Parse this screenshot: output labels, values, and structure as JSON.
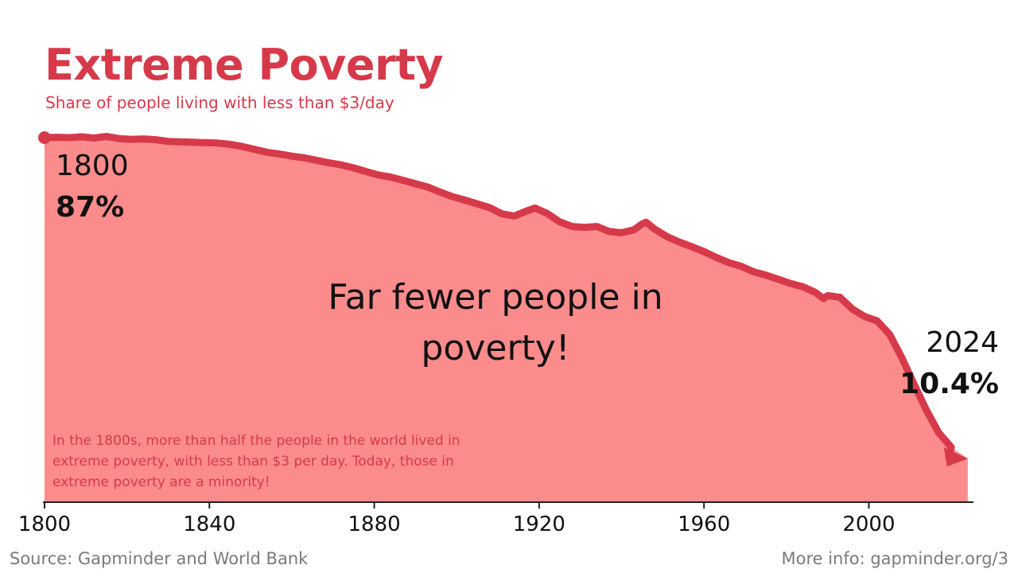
{
  "header": {
    "title": "Extreme Poverty",
    "subtitle": "Share of people living with less than $3/day"
  },
  "chart_data": {
    "type": "area",
    "x": [
      1800,
      1803,
      1806,
      1809,
      1812,
      1815,
      1818,
      1821,
      1824,
      1827,
      1830,
      1833,
      1836,
      1839,
      1842,
      1845,
      1848,
      1851,
      1854,
      1857,
      1860,
      1863,
      1866,
      1869,
      1872,
      1875,
      1878,
      1881,
      1884,
      1887,
      1890,
      1893,
      1896,
      1899,
      1902,
      1905,
      1908,
      1911,
      1914,
      1917,
      1919,
      1922,
      1925,
      1928,
      1931,
      1934,
      1937,
      1940,
      1943,
      1945,
      1946,
      1948,
      1951,
      1954,
      1957,
      1960,
      1963,
      1966,
      1969,
      1972,
      1975,
      1978,
      1981,
      1984,
      1987,
      1989,
      1990,
      1993,
      1996,
      1999,
      2002,
      2005,
      2008,
      2011,
      2014,
      2017,
      2020,
      2024
    ],
    "y": [
      87,
      87.1,
      87,
      87.2,
      86.9,
      87.3,
      86.8,
      86.6,
      86.7,
      86.5,
      86.1,
      86,
      85.9,
      85.8,
      85.7,
      85.4,
      84.9,
      84.2,
      83.5,
      83.1,
      82.6,
      82.2,
      81.6,
      81,
      80.5,
      79.8,
      78.9,
      78.1,
      77.6,
      76.8,
      76,
      75.2,
      74,
      72.9,
      72.1,
      71.2,
      70.3,
      68.8,
      68.3,
      69.5,
      70.2,
      68.9,
      66.9,
      65.8,
      65.6,
      65.8,
      64.6,
      64.3,
      65,
      66.4,
      66.8,
      65.2,
      63.4,
      62.1,
      61,
      59.8,
      58.4,
      57.2,
      56.3,
      55,
      54.2,
      53.2,
      52.2,
      51.4,
      50.1,
      48.6,
      49.3,
      48.9,
      46.1,
      44.3,
      43.3,
      40.1,
      34.5,
      28.1,
      21.9,
      16.5,
      13.1,
      10.4
    ],
    "title": "Extreme Poverty",
    "subtitle": "Share of people living with less than $3/day",
    "xlim": [
      1800,
      2025
    ],
    "ylim": [
      0,
      87
    ],
    "xticks": [
      "1800",
      "1840",
      "1880",
      "1920",
      "1960",
      "2000"
    ],
    "grid": false,
    "legend": "none",
    "line_color": "#d63a4a",
    "fill_color": "#fc8c8c",
    "annotations": {
      "start_year": "1800",
      "start_value": "87%",
      "end_year": "2024",
      "end_value": "10.4%",
      "message_line1": "Far fewer people in",
      "message_line2": "poverty!",
      "note_line1": "In the 1800s, more than half the people in the world lived in",
      "note_line2": "extreme poverty, with less than $3 per day. Today, those in",
      "note_line3": "extreme poverty are a minority!"
    }
  },
  "footer": {
    "source": "Source: Gapminder and World Bank",
    "more_info": "More info: gapminder.org/3"
  }
}
